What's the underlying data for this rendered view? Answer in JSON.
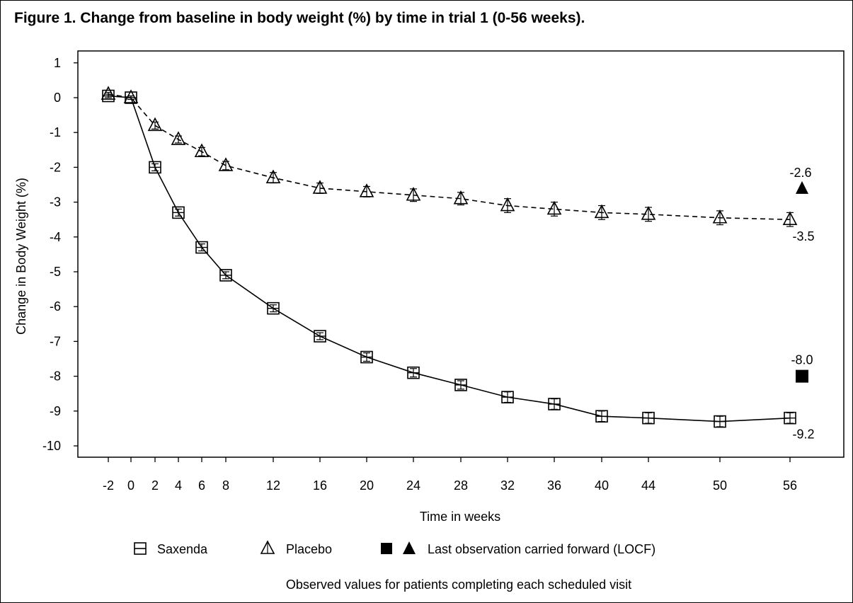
{
  "figure_title": "Figure 1. Change from baseline in body weight (%) by time in trial 1 (0-56 weeks).",
  "legend": {
    "saxenda_label": "Saxenda",
    "placebo_label": "Placebo",
    "locf_label": "Last observation carried forward (LOCF)"
  },
  "footnote": "Observed values for patients completing each scheduled visit",
  "colors": {
    "ink": "#000000",
    "background": "#ffffff"
  },
  "chart_data": {
    "type": "line",
    "title": "Figure 1. Change from baseline in body weight (%) by time in trial 1 (0-56 weeks).",
    "xlabel": "Time in weeks",
    "ylabel": "Change in Body Weight (%)",
    "ylim": [
      -10,
      1
    ],
    "x_ticks": [
      "-2",
      "0",
      "2",
      "4",
      "6",
      "8",
      "12",
      "16",
      "20",
      "24",
      "28",
      "32",
      "36",
      "40",
      "44",
      "50",
      "56"
    ],
    "y_ticks": [
      1,
      0,
      -1,
      -2,
      -3,
      -4,
      -5,
      -6,
      -7,
      -8,
      -9,
      -10
    ],
    "grid": false,
    "legend_position": "bottom",
    "series": [
      {
        "name": "Saxenda",
        "marker": "square-open",
        "line": "solid",
        "x": [
          -2,
          0,
          2,
          4,
          6,
          8,
          12,
          16,
          20,
          24,
          28,
          32,
          36,
          40,
          44,
          50,
          56
        ],
        "values": [
          0.05,
          0.0,
          -2.0,
          -3.3,
          -4.3,
          -5.1,
          -6.05,
          -6.85,
          -7.45,
          -7.9,
          -8.25,
          -8.6,
          -8.8,
          -9.15,
          -9.2,
          -9.3,
          -9.2
        ],
        "error": [
          0.05,
          0.05,
          0.1,
          0.1,
          0.1,
          0.1,
          0.1,
          0.1,
          0.12,
          0.12,
          0.12,
          0.15,
          0.15,
          0.15,
          0.15,
          0.15,
          0.15
        ]
      },
      {
        "name": "Placebo",
        "marker": "triangle-open",
        "line": "dashed",
        "x": [
          -2,
          0,
          2,
          4,
          6,
          8,
          12,
          16,
          20,
          24,
          28,
          32,
          36,
          40,
          44,
          50,
          56
        ],
        "values": [
          0.1,
          0.0,
          -0.8,
          -1.2,
          -1.55,
          -1.95,
          -2.3,
          -2.6,
          -2.7,
          -2.8,
          -2.9,
          -3.1,
          -3.2,
          -3.3,
          -3.35,
          -3.45,
          -3.5
        ],
        "error": [
          0.05,
          0.05,
          0.1,
          0.1,
          0.12,
          0.12,
          0.15,
          0.15,
          0.15,
          0.18,
          0.18,
          0.2,
          0.2,
          0.2,
          0.2,
          0.2,
          0.2
        ]
      }
    ],
    "end_labels": {
      "saxenda": "-9.2",
      "placebo": "-3.5"
    },
    "locf": [
      {
        "name": "Saxenda LOCF",
        "marker": "square-filled",
        "value": -8.0,
        "label": "-8.0"
      },
      {
        "name": "Placebo LOCF",
        "marker": "triangle-filled",
        "value": -2.6,
        "label": "-2.6"
      }
    ]
  }
}
